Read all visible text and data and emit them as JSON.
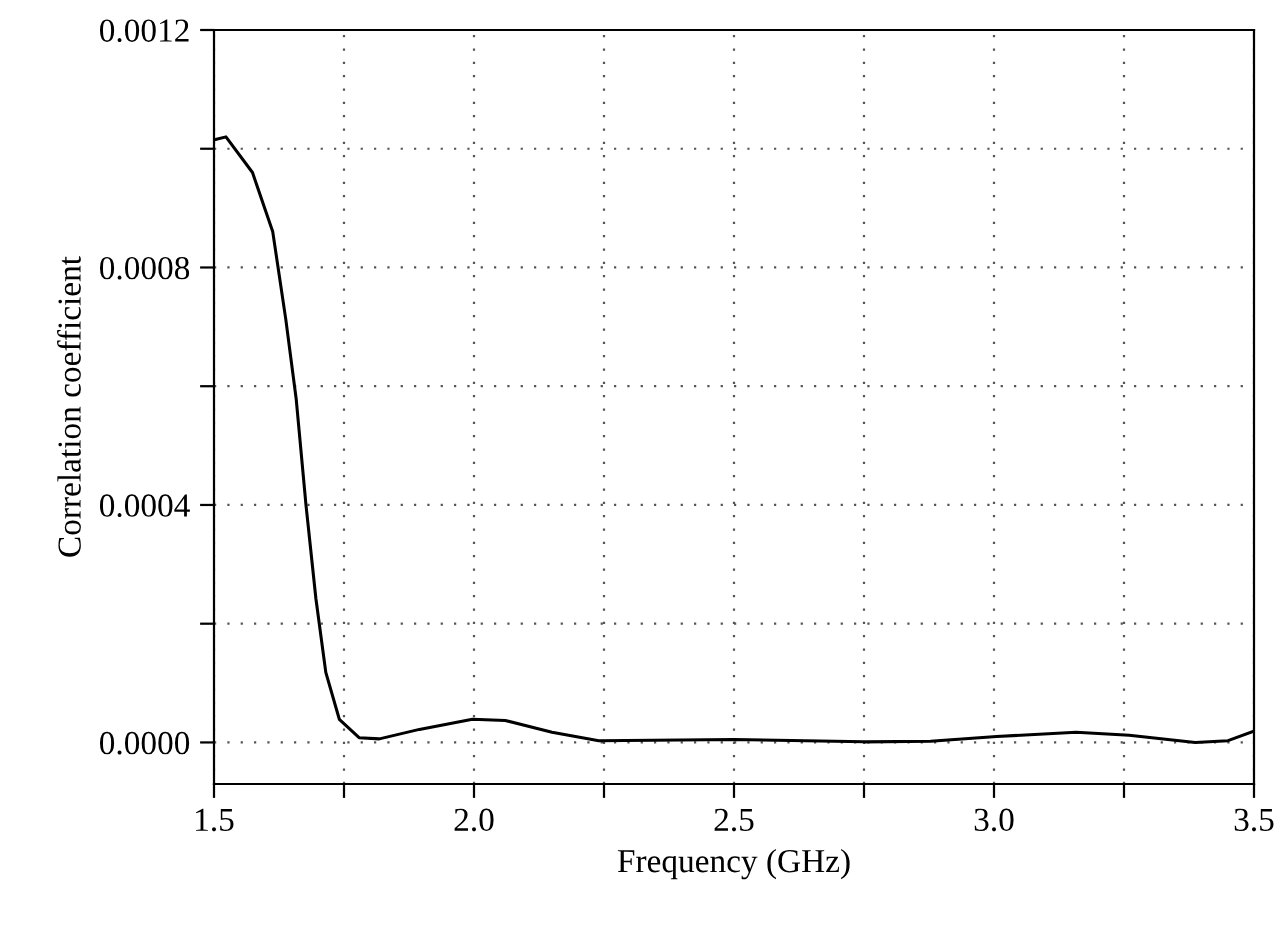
{
  "chart_data": {
    "type": "line",
    "xlabel": "Frequency (GHz)",
    "ylabel": "Correlation coefficient",
    "x": [
      1.5,
      1.523,
      1.574,
      1.613,
      1.638,
      1.658,
      1.677,
      1.696,
      1.715,
      1.741,
      1.779,
      1.818,
      1.895,
      1.997,
      2.06,
      2.15,
      2.24,
      2.5,
      2.75,
      2.878,
      3.005,
      3.158,
      3.26,
      3.387,
      3.45,
      3.5
    ],
    "series": [
      {
        "color": "#000000",
        "values": [
          0.001015,
          0.00102,
          0.00096,
          0.00086,
          0.000713,
          0.000579,
          0.000399,
          0.000242,
          0.000118,
          3.9e-05,
          8e-06,
          6e-06,
          2.2e-05,
          3.9e-05,
          3.7e-05,
          1.7e-05,
          3e-06,
          5e-06,
          1e-06,
          2e-06,
          1e-05,
          1.7e-05,
          1.2e-05,
          0.0,
          3e-06,
          1.9e-05
        ]
      }
    ],
    "xlim": [
      1.5,
      3.5
    ],
    "xticks": [
      {
        "value": 1.5,
        "label": "1.5"
      },
      {
        "value": 1.75,
        "label": null
      },
      {
        "value": 2.0,
        "label": "2.0"
      },
      {
        "value": 2.25,
        "label": null
      },
      {
        "value": 2.5,
        "label": "2.5"
      },
      {
        "value": 2.75,
        "label": null
      },
      {
        "value": 3.0,
        "label": "3.0"
      },
      {
        "value": 3.25,
        "label": null
      },
      {
        "value": 3.5,
        "label": "3.5"
      }
    ],
    "ylim": [
      -7e-05,
      0.0012
    ],
    "yticks": [
      {
        "value": 0.0,
        "label": "0.0000"
      },
      {
        "value": 0.0002,
        "label": null
      },
      {
        "value": 0.0004,
        "label": "0.0004"
      },
      {
        "value": 0.0006,
        "label": null
      },
      {
        "value": 0.0008,
        "label": "0.0008"
      },
      {
        "value": 0.001,
        "label": null
      },
      {
        "value": 0.0012,
        "label": "0.0012"
      }
    ],
    "grid": true,
    "marker": "none",
    "line_style": "solid"
  }
}
